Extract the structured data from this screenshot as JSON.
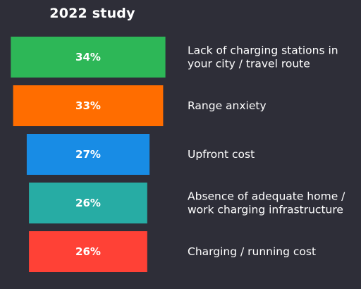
{
  "chart_data": {
    "type": "bar",
    "title": "2022 study",
    "orientation": "horizontal-centered",
    "categories": [
      "Lack of charging stations in your city / travel route",
      "Range anxiety",
      "Upfront cost",
      "Absence of adequate home / work charging infrastructure",
      "Charging / running cost"
    ],
    "category_lines": [
      [
        "Lack of charging stations in",
        "your city / travel route"
      ],
      [
        "Range anxiety"
      ],
      [
        "Upfront cost"
      ],
      [
        "Absence of adequate home /",
        "work charging infrastructure"
      ],
      [
        "Charging / running cost"
      ]
    ],
    "values": [
      34,
      33,
      27,
      26,
      26
    ],
    "value_labels": [
      "34%",
      "33%",
      "27%",
      "26%",
      "26%"
    ],
    "colors": [
      "#2db757",
      "#ff6d00",
      "#188ce5",
      "#27aca4",
      "#ff4136"
    ],
    "xlabel": "",
    "ylabel": "",
    "grid": false,
    "legend": "none"
  }
}
